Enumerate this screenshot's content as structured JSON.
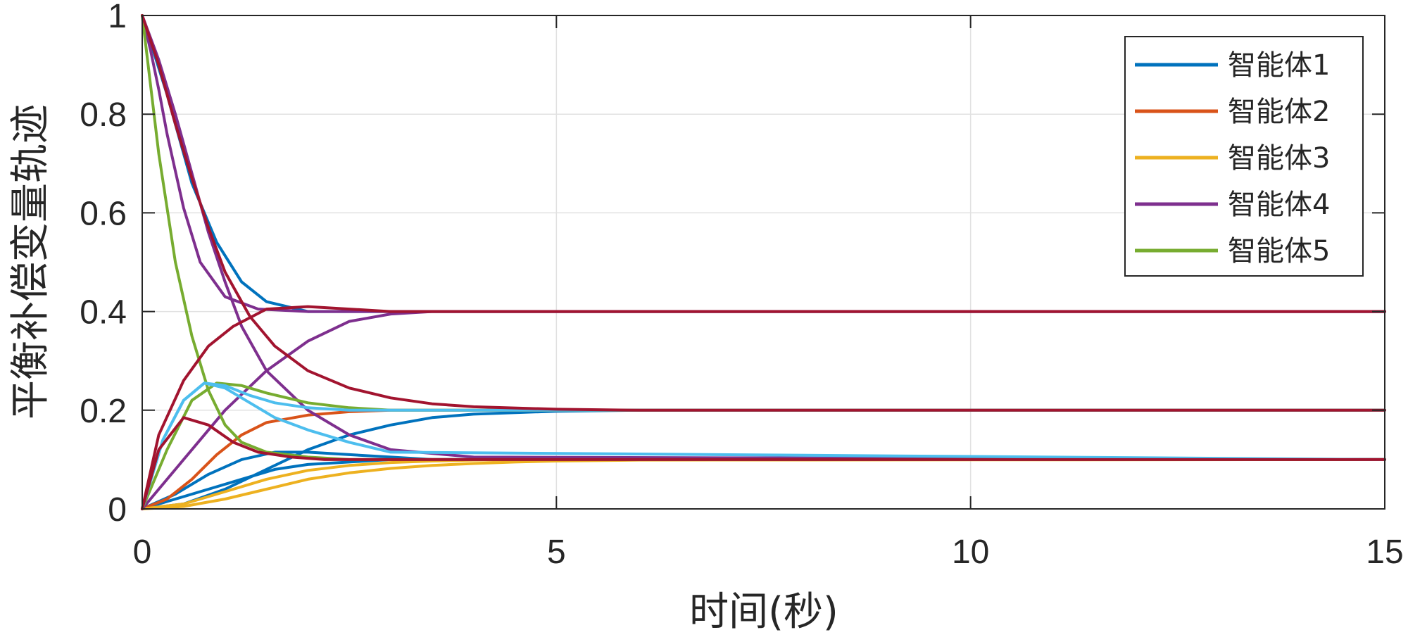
{
  "chart_data": {
    "type": "line",
    "title": "",
    "xlabel": "时间(秒)",
    "ylabel": "平衡补偿变量轨迹",
    "xlim": [
      0,
      15
    ],
    "ylim": [
      0,
      1
    ],
    "xticks": [
      "0",
      "5",
      "10",
      "15"
    ],
    "yticks": [
      "0",
      "0.2",
      "0.4",
      "0.6",
      "0.8",
      "1"
    ],
    "grid": true,
    "legend_position": "top-right",
    "legend": [
      {
        "label": "智能体1",
        "color": "#0072BD"
      },
      {
        "label": "智能体2",
        "color": "#D95319"
      },
      {
        "label": "智能体3",
        "color": "#EDB120"
      },
      {
        "label": "智能体4",
        "color": "#7E2F8E"
      },
      {
        "label": "智能体5",
        "color": "#77AC30"
      }
    ],
    "series": [
      {
        "color": "#0072BD",
        "x": [
          0,
          0.3,
          0.6,
          0.9,
          1.2,
          1.5,
          2,
          2.5,
          3,
          4,
          5,
          15
        ],
        "y": [
          1,
          0.84,
          0.66,
          0.54,
          0.46,
          0.42,
          0.4,
          0.4,
          0.4,
          0.4,
          0.4,
          0.4
        ]
      },
      {
        "color": "#0072BD",
        "x": [
          0,
          0.4,
          0.8,
          1.2,
          1.6,
          2,
          2.5,
          3,
          4,
          5,
          15
        ],
        "y": [
          0,
          0.02,
          0.04,
          0.06,
          0.08,
          0.09,
          0.095,
          0.1,
          0.1,
          0.1,
          0.1
        ]
      },
      {
        "color": "#0072BD",
        "x": [
          0,
          0.4,
          0.8,
          1.2,
          1.6,
          2,
          2.5,
          3,
          3.5,
          4,
          5,
          15
        ],
        "y": [
          0,
          0.03,
          0.07,
          0.1,
          0.115,
          0.115,
          0.11,
          0.105,
          0.1,
          0.1,
          0.1,
          0.1
        ]
      },
      {
        "color": "#0072BD",
        "x": [
          0,
          0.5,
          1,
          1.5,
          2,
          2.5,
          3,
          3.5,
          4,
          5,
          6,
          15
        ],
        "y": [
          0,
          0.01,
          0.04,
          0.08,
          0.12,
          0.15,
          0.17,
          0.185,
          0.192,
          0.198,
          0.2,
          0.2
        ]
      },
      {
        "color": "#D95319",
        "x": [
          0,
          0.3,
          0.6,
          0.9,
          1.2,
          1.5,
          2,
          2.5,
          3,
          4,
          15
        ],
        "y": [
          0,
          0.02,
          0.06,
          0.11,
          0.15,
          0.175,
          0.19,
          0.197,
          0.2,
          0.2,
          0.2
        ]
      },
      {
        "color": "#EDB120",
        "x": [
          0,
          0.5,
          1,
          1.5,
          2,
          2.5,
          3,
          3.5,
          4,
          4.5,
          5,
          6,
          15
        ],
        "y": [
          0,
          0.005,
          0.02,
          0.04,
          0.06,
          0.073,
          0.082,
          0.088,
          0.092,
          0.095,
          0.097,
          0.099,
          0.1
        ]
      },
      {
        "color": "#EDB120",
        "x": [
          0,
          0.5,
          1,
          1.5,
          2,
          2.5,
          3,
          3.5,
          4,
          5,
          6,
          15
        ],
        "y": [
          0,
          0.01,
          0.035,
          0.06,
          0.078,
          0.088,
          0.094,
          0.097,
          0.099,
          0.1,
          0.1,
          0.1
        ]
      },
      {
        "color": "#7E2F8E",
        "x": [
          0,
          0.2,
          0.4,
          0.6,
          0.8,
          1,
          1.2,
          1.5,
          2,
          2.5,
          3,
          4,
          15
        ],
        "y": [
          1,
          0.91,
          0.8,
          0.68,
          0.56,
          0.46,
          0.37,
          0.28,
          0.2,
          0.15,
          0.12,
          0.105,
          0.1
        ]
      },
      {
        "color": "#7E2F8E",
        "x": [
          0,
          0.5,
          1,
          1.5,
          2,
          2.5,
          3,
          3.5,
          15
        ],
        "y": [
          0,
          0.1,
          0.2,
          0.28,
          0.34,
          0.38,
          0.395,
          0.4,
          0.4
        ]
      },
      {
        "color": "#7E2F8E",
        "x": [
          0,
          0.1,
          0.2,
          0.3,
          0.5,
          0.7,
          1,
          1.4,
          2,
          3,
          15
        ],
        "y": [
          1,
          0.93,
          0.85,
          0.76,
          0.61,
          0.5,
          0.43,
          0.405,
          0.4,
          0.4,
          0.4
        ]
      },
      {
        "color": "#77AC30",
        "x": [
          0,
          0.2,
          0.4,
          0.6,
          0.8,
          1,
          1.2,
          1.5,
          2,
          2.5,
          3,
          15
        ],
        "y": [
          1,
          0.72,
          0.5,
          0.35,
          0.24,
          0.17,
          0.135,
          0.115,
          0.105,
          0.1,
          0.1,
          0.1
        ]
      },
      {
        "color": "#77AC30",
        "x": [
          0,
          0.3,
          0.6,
          0.9,
          1.2,
          1.5,
          2,
          2.5,
          3,
          4,
          15
        ],
        "y": [
          0,
          0.12,
          0.22,
          0.255,
          0.25,
          0.235,
          0.215,
          0.205,
          0.2,
          0.2,
          0.2
        ]
      },
      {
        "color": "#4DBEEE",
        "x": [
          0,
          0.25,
          0.5,
          0.75,
          1,
          1.3,
          1.6,
          2,
          2.5,
          3,
          15
        ],
        "y": [
          0,
          0.14,
          0.22,
          0.255,
          0.245,
          0.215,
          0.185,
          0.16,
          0.135,
          0.115,
          0.1
        ]
      },
      {
        "color": "#4DBEEE",
        "x": [
          0,
          0.25,
          0.5,
          0.75,
          1,
          1.3,
          1.6,
          2,
          2.5,
          3,
          4,
          15
        ],
        "y": [
          0,
          0.14,
          0.22,
          0.255,
          0.25,
          0.23,
          0.215,
          0.205,
          0.2,
          0.2,
          0.2,
          0.2
        ]
      },
      {
        "color": "#A2142F",
        "x": [
          0,
          0.2,
          0.5,
          0.8,
          1.1,
          1.5,
          2,
          2.5,
          3,
          15
        ],
        "y": [
          0,
          0.15,
          0.26,
          0.33,
          0.37,
          0.405,
          0.41,
          0.405,
          0.4,
          0.4
        ]
      },
      {
        "color": "#A2142F",
        "x": [
          0,
          0.2,
          0.5,
          0.8,
          1.1,
          1.4,
          1.8,
          2.2,
          2.6,
          3,
          3.5,
          4,
          5,
          6,
          15
        ],
        "y": [
          0,
          0.12,
          0.185,
          0.17,
          0.135,
          0.115,
          0.105,
          0.1,
          0.1,
          0.1,
          0.1,
          0.1,
          0.1,
          0.1,
          0.1
        ]
      },
      {
        "color": "#A2142F",
        "x": [
          0,
          0.2,
          0.4,
          0.6,
          0.8,
          1,
          1.3,
          1.6,
          2,
          2.5,
          3,
          3.5,
          4,
          5,
          6,
          15
        ],
        "y": [
          1,
          0.9,
          0.78,
          0.67,
          0.57,
          0.48,
          0.39,
          0.33,
          0.28,
          0.245,
          0.225,
          0.213,
          0.207,
          0.202,
          0.2,
          0.2
        ]
      }
    ]
  }
}
